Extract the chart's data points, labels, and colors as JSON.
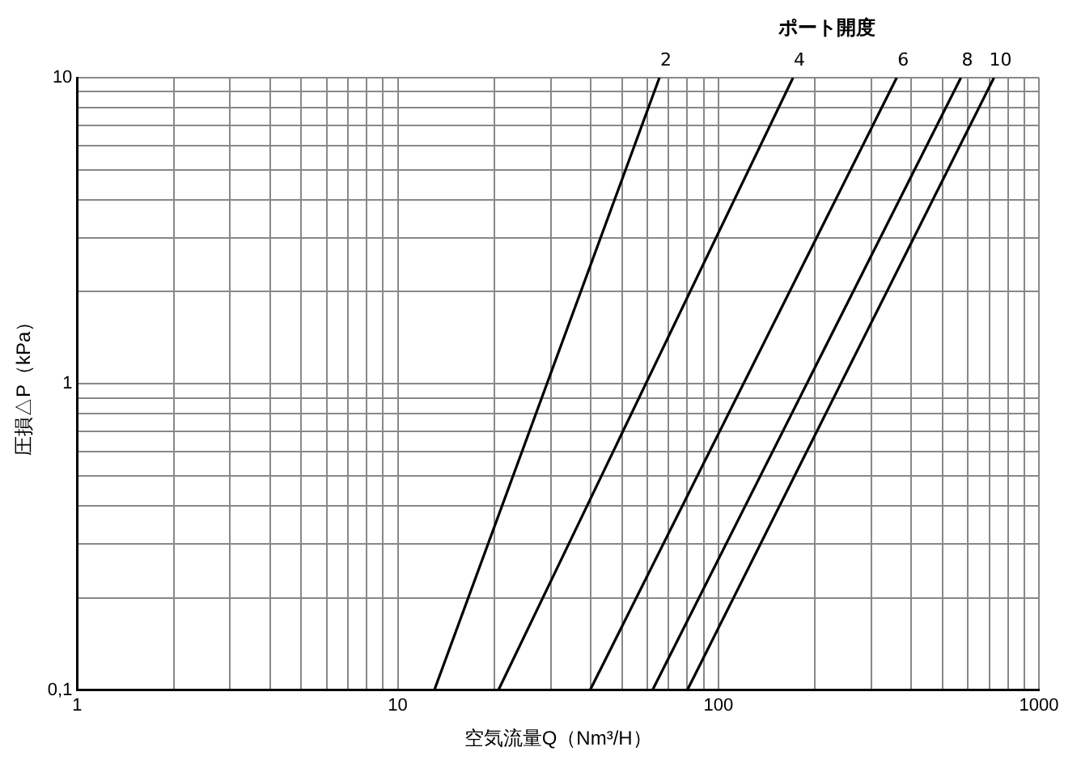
{
  "chart_data": {
    "type": "line",
    "legend_title": "ポート開度",
    "xlabel": "空気流量Q（Nm³/H）",
    "ylabel": "圧損△P（kPa）",
    "log": "xy",
    "grid": true,
    "legend": false,
    "marker": "none",
    "line_style": "solid",
    "xlim": [
      1,
      1000
    ],
    "ylim": [
      0.1,
      10
    ],
    "xticks": [
      1,
      {
        "value": 2,
        "label": null
      },
      {
        "value": 3,
        "label": null
      },
      {
        "value": 4,
        "label": null
      },
      {
        "value": 5,
        "label": null
      },
      {
        "value": 6,
        "label": null
      },
      {
        "value": 7,
        "label": null
      },
      {
        "value": 8,
        "label": null
      },
      {
        "value": 9,
        "label": null
      },
      10,
      {
        "value": 20,
        "label": null
      },
      {
        "value": 30,
        "label": null
      },
      {
        "value": 40,
        "label": null
      },
      {
        "value": 50,
        "label": null
      },
      {
        "value": 60,
        "label": null
      },
      {
        "value": 70,
        "label": null
      },
      {
        "value": 80,
        "label": null
      },
      {
        "value": 90,
        "label": null
      },
      100,
      {
        "value": 200,
        "label": null
      },
      {
        "value": 300,
        "label": null
      },
      {
        "value": 400,
        "label": null
      },
      {
        "value": 500,
        "label": null
      },
      {
        "value": 600,
        "label": null
      },
      {
        "value": 700,
        "label": null
      },
      {
        "value": 800,
        "label": null
      },
      {
        "value": 900,
        "label": null
      },
      1000
    ],
    "yticks": [
      {
        "value": 0.1,
        "label": "0,1"
      },
      {
        "value": 0.2,
        "label": null
      },
      {
        "value": 0.3,
        "label": null
      },
      {
        "value": 0.4,
        "label": null
      },
      {
        "value": 0.5,
        "label": null
      },
      {
        "value": 0.6,
        "label": null
      },
      {
        "value": 0.7,
        "label": null
      },
      {
        "value": 0.8,
        "label": null
      },
      {
        "value": 0.9,
        "label": null
      },
      1,
      {
        "value": 2,
        "label": null
      },
      {
        "value": 3,
        "label": null
      },
      {
        "value": 4,
        "label": null
      },
      {
        "value": 5,
        "label": null
      },
      {
        "value": 6,
        "label": null
      },
      {
        "value": 7,
        "label": null
      },
      {
        "value": 8,
        "label": null
      },
      {
        "value": 9,
        "label": null
      },
      10
    ],
    "series": [
      {
        "name": "2",
        "color": "#000000",
        "x": [
          13,
          65.5
        ],
        "values": [
          0.1,
          10
        ]
      },
      {
        "name": "4",
        "color": "#000000",
        "x": [
          20.6,
          171
        ],
        "values": [
          0.1,
          10
        ]
      },
      {
        "name": "6",
        "color": "#000000",
        "x": [
          39.8,
          360
        ],
        "values": [
          0.1,
          10
        ]
      },
      {
        "name": "8",
        "color": "#000000",
        "x": [
          62.3,
          571
        ],
        "values": [
          0.1,
          10
        ]
      },
      {
        "name": "10",
        "color": "#000000",
        "x": [
          80,
          724
        ],
        "values": [
          0.1,
          10
        ]
      }
    ]
  }
}
